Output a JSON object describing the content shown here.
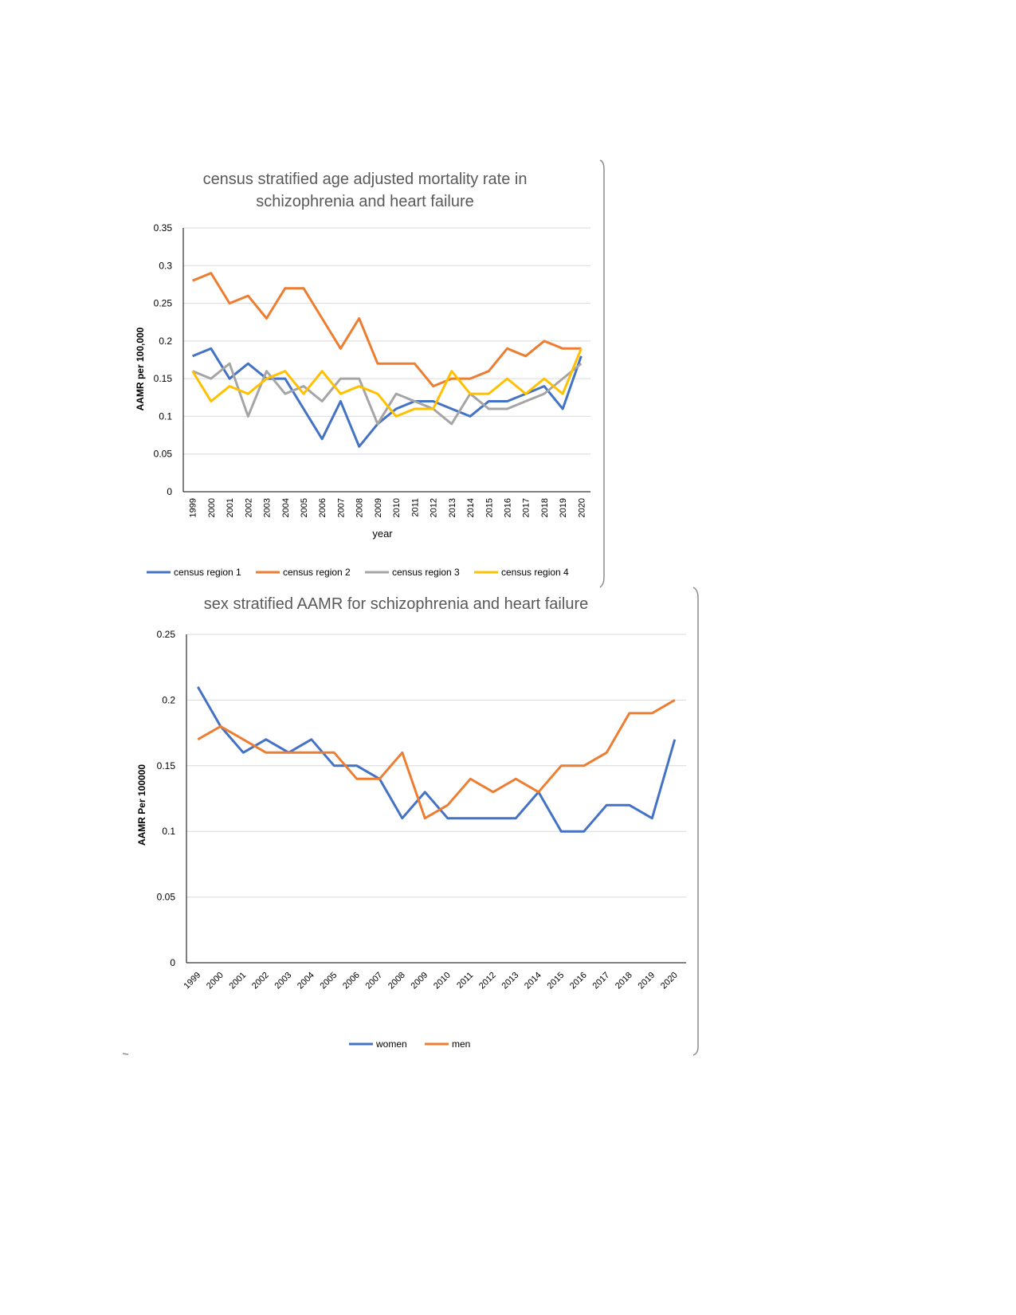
{
  "chart_data": [
    {
      "type": "line",
      "title": "census stratified age adjusted mortality rate in schizophrenia and heart failure",
      "title_lines": [
        "census stratified age adjusted mortality rate in",
        "schizophrenia and heart failure"
      ],
      "xlabel": "year",
      "ylabel": "AAMR per 100,000",
      "ylim": [
        0,
        0.35
      ],
      "yticks": [
        0,
        0.05,
        0.1,
        0.15,
        0.2,
        0.25,
        0.3,
        0.35
      ],
      "ytick_labels": [
        "0",
        "0.05",
        "0.1",
        "0.15",
        "0.2",
        "0.25",
        "0.3",
        "0.35"
      ],
      "grid": true,
      "legend_position": "bottom",
      "categories": [
        "1999",
        "2000",
        "2001",
        "2002",
        "2003",
        "2004",
        "2005",
        "2006",
        "2007",
        "2008",
        "2009",
        "2010",
        "2011",
        "2012",
        "2013",
        "2014",
        "2015",
        "2016",
        "2017",
        "2018",
        "2019",
        "2020"
      ],
      "series": [
        {
          "name": "census region 1",
          "color": "#4472C4",
          "values": [
            0.18,
            0.19,
            0.15,
            0.17,
            0.15,
            0.15,
            0.11,
            0.07,
            0.12,
            0.06,
            0.09,
            0.11,
            0.12,
            0.12,
            0.11,
            0.1,
            0.12,
            0.12,
            0.13,
            0.14,
            0.11,
            0.18
          ]
        },
        {
          "name": "census region 2",
          "color": "#ED7D31",
          "values": [
            0.28,
            0.29,
            0.25,
            0.26,
            0.23,
            0.27,
            0.27,
            0.23,
            0.19,
            0.23,
            0.17,
            0.17,
            0.17,
            0.14,
            0.15,
            0.15,
            0.16,
            0.19,
            0.18,
            0.2,
            0.19,
            0.19
          ]
        },
        {
          "name": "census region 3",
          "color": "#A5A5A5",
          "values": [
            0.16,
            0.15,
            0.17,
            0.1,
            0.16,
            0.13,
            0.14,
            0.12,
            0.15,
            0.15,
            0.09,
            0.13,
            0.12,
            0.11,
            0.09,
            0.13,
            0.11,
            0.11,
            0.12,
            0.13,
            0.15,
            0.17
          ]
        },
        {
          "name": "census region 4",
          "color": "#FFC000",
          "values": [
            0.16,
            0.12,
            0.14,
            0.13,
            0.15,
            0.16,
            0.13,
            0.16,
            0.13,
            0.14,
            0.13,
            0.1,
            0.11,
            0.11,
            0.16,
            0.13,
            0.13,
            0.15,
            0.13,
            0.15,
            0.13,
            0.19
          ]
        }
      ]
    },
    {
      "type": "line",
      "title": "sex stratified AAMR for schizophrenia and heart failure",
      "xlabel": "",
      "ylabel": "AAMR Per 100000",
      "ylim": [
        0,
        0.25
      ],
      "yticks": [
        0,
        0.05,
        0.1,
        0.15,
        0.2,
        0.25
      ],
      "ytick_labels": [
        "0",
        "0.05",
        "0.1",
        "0.15",
        "0.2",
        "0.25"
      ],
      "grid": true,
      "legend_position": "bottom",
      "categories": [
        "1999",
        "2000",
        "2001",
        "2002",
        "2003",
        "2004",
        "2005",
        "2006",
        "2007",
        "2008",
        "2009",
        "2010",
        "2011",
        "2012",
        "2013",
        "2014",
        "2015",
        "2016",
        "2017",
        "2018",
        "2019",
        "2020"
      ],
      "series": [
        {
          "name": "women",
          "color": "#4472C4",
          "values": [
            0.21,
            0.18,
            0.16,
            0.17,
            0.16,
            0.17,
            0.15,
            0.15,
            0.14,
            0.11,
            0.13,
            0.11,
            0.11,
            0.11,
            0.11,
            0.13,
            0.1,
            0.1,
            0.12,
            0.12,
            0.11,
            0.17
          ]
        },
        {
          "name": "men",
          "color": "#ED7D31",
          "values": [
            0.17,
            0.18,
            0.17,
            0.16,
            0.16,
            0.16,
            0.16,
            0.14,
            0.14,
            0.16,
            0.11,
            0.12,
            0.14,
            0.13,
            0.14,
            0.13,
            0.15,
            0.15,
            0.16,
            0.19,
            0.19,
            0.2
          ]
        }
      ]
    }
  ],
  "colors": {
    "gridline": "#D9D9D9",
    "axis": "#000000",
    "title_text": "#595959",
    "tick_text": "#000000"
  }
}
